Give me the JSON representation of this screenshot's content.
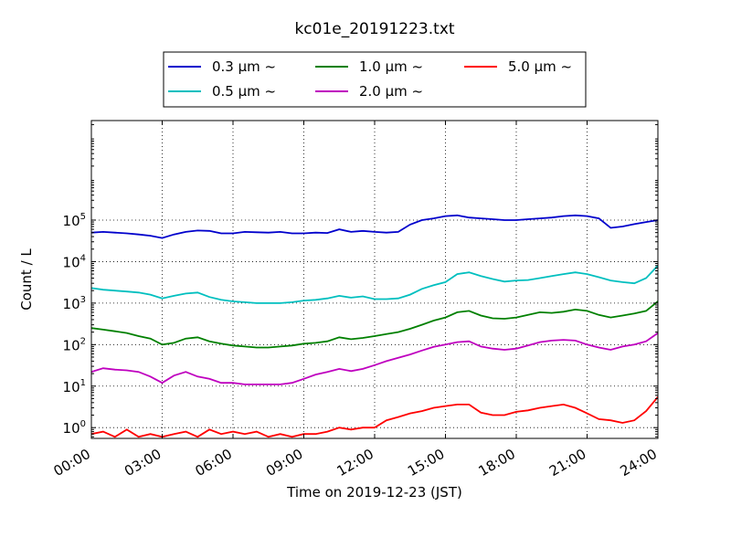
{
  "chart_data": {
    "type": "line",
    "title": "kc01e_20191223.txt",
    "xlabel": "Time on 2019-12-23 (JST)",
    "ylabel": "Count / L",
    "yscale": "log",
    "ylim": [
      0.55,
      25000000
    ],
    "xlim": [
      0,
      24
    ],
    "grid": true,
    "legend_position": "top",
    "x_tick_labels": [
      "00:00",
      "03:00",
      "06:00",
      "09:00",
      "12:00",
      "15:00",
      "18:00",
      "21:00",
      "24:00"
    ],
    "y_tick_labels": [
      {
        "base": "10",
        "exp": "0"
      },
      {
        "base": "10",
        "exp": "1"
      },
      {
        "base": "10",
        "exp": "2"
      },
      {
        "base": "10",
        "exp": "3"
      },
      {
        "base": "10",
        "exp": "4"
      },
      {
        "base": "10",
        "exp": "5"
      }
    ],
    "series": [
      {
        "name": "0.3 μm ~",
        "color": "#0000cc",
        "points": [
          [
            0.0,
            50000
          ],
          [
            0.5,
            52000
          ],
          [
            1.0,
            50000
          ],
          [
            1.5,
            48000
          ],
          [
            2.0,
            45000
          ],
          [
            2.5,
            42000
          ],
          [
            3.0,
            37000
          ],
          [
            3.5,
            45000
          ],
          [
            4.0,
            52000
          ],
          [
            4.5,
            56000
          ],
          [
            5.0,
            55000
          ],
          [
            5.5,
            48000
          ],
          [
            6.0,
            48000
          ],
          [
            6.5,
            52000
          ],
          [
            7.0,
            51000
          ],
          [
            7.5,
            50000
          ],
          [
            8.0,
            52000
          ],
          [
            8.5,
            48000
          ],
          [
            9.0,
            48000
          ],
          [
            9.5,
            50000
          ],
          [
            10.0,
            49000
          ],
          [
            10.5,
            60000
          ],
          [
            11.0,
            52000
          ],
          [
            11.5,
            55000
          ],
          [
            12.0,
            52000
          ],
          [
            12.5,
            50000
          ],
          [
            13.0,
            52000
          ],
          [
            13.5,
            78000
          ],
          [
            14.0,
            100000
          ],
          [
            14.5,
            110000
          ],
          [
            15.0,
            125000
          ],
          [
            15.5,
            130000
          ],
          [
            16.0,
            115000
          ],
          [
            16.5,
            110000
          ],
          [
            17.0,
            105000
          ],
          [
            17.5,
            100000
          ],
          [
            18.0,
            100000
          ],
          [
            18.5,
            105000
          ],
          [
            19.0,
            110000
          ],
          [
            19.5,
            115000
          ],
          [
            20.0,
            125000
          ],
          [
            20.5,
            130000
          ],
          [
            21.0,
            125000
          ],
          [
            21.5,
            110000
          ],
          [
            22.0,
            65000
          ],
          [
            22.5,
            70000
          ],
          [
            23.0,
            80000
          ],
          [
            23.5,
            90000
          ],
          [
            24.0,
            100000
          ]
        ]
      },
      {
        "name": "0.5 μm ~",
        "color": "#00bfbf",
        "points": [
          [
            0.0,
            2300
          ],
          [
            0.5,
            2100
          ],
          [
            1.0,
            2000
          ],
          [
            1.5,
            1900
          ],
          [
            2.0,
            1800
          ],
          [
            2.5,
            1600
          ],
          [
            3.0,
            1300
          ],
          [
            3.5,
            1500
          ],
          [
            4.0,
            1700
          ],
          [
            4.5,
            1800
          ],
          [
            5.0,
            1400
          ],
          [
            5.5,
            1200
          ],
          [
            6.0,
            1100
          ],
          [
            6.5,
            1050
          ],
          [
            7.0,
            1000
          ],
          [
            7.5,
            1000
          ],
          [
            8.0,
            1000
          ],
          [
            8.5,
            1050
          ],
          [
            9.0,
            1150
          ],
          [
            9.5,
            1200
          ],
          [
            10.0,
            1300
          ],
          [
            10.5,
            1500
          ],
          [
            11.0,
            1350
          ],
          [
            11.5,
            1450
          ],
          [
            12.0,
            1250
          ],
          [
            12.5,
            1250
          ],
          [
            13.0,
            1300
          ],
          [
            13.5,
            1600
          ],
          [
            14.0,
            2200
          ],
          [
            14.5,
            2700
          ],
          [
            15.0,
            3200
          ],
          [
            15.5,
            5000
          ],
          [
            16.0,
            5500
          ],
          [
            16.5,
            4500
          ],
          [
            17.0,
            3800
          ],
          [
            17.5,
            3300
          ],
          [
            18.0,
            3500
          ],
          [
            18.5,
            3600
          ],
          [
            19.0,
            4000
          ],
          [
            19.5,
            4500
          ],
          [
            20.0,
            5000
          ],
          [
            20.5,
            5500
          ],
          [
            21.0,
            5000
          ],
          [
            21.5,
            4200
          ],
          [
            22.0,
            3500
          ],
          [
            22.5,
            3200
          ],
          [
            23.0,
            3000
          ],
          [
            23.5,
            4000
          ],
          [
            24.0,
            8000
          ]
        ]
      },
      {
        "name": "1.0 μm ~",
        "color": "#008000",
        "points": [
          [
            0.0,
            250
          ],
          [
            0.5,
            230
          ],
          [
            1.0,
            210
          ],
          [
            1.5,
            190
          ],
          [
            2.0,
            160
          ],
          [
            2.5,
            140
          ],
          [
            3.0,
            100
          ],
          [
            3.5,
            110
          ],
          [
            4.0,
            140
          ],
          [
            4.5,
            150
          ],
          [
            5.0,
            120
          ],
          [
            5.5,
            105
          ],
          [
            6.0,
            95
          ],
          [
            6.5,
            90
          ],
          [
            7.0,
            85
          ],
          [
            7.5,
            85
          ],
          [
            8.0,
            90
          ],
          [
            8.5,
            95
          ],
          [
            9.0,
            105
          ],
          [
            9.5,
            110
          ],
          [
            10.0,
            120
          ],
          [
            10.5,
            150
          ],
          [
            11.0,
            135
          ],
          [
            11.5,
            145
          ],
          [
            12.0,
            160
          ],
          [
            12.5,
            180
          ],
          [
            13.0,
            200
          ],
          [
            13.5,
            240
          ],
          [
            14.0,
            300
          ],
          [
            14.5,
            380
          ],
          [
            15.0,
            450
          ],
          [
            15.5,
            600
          ],
          [
            16.0,
            650
          ],
          [
            16.5,
            500
          ],
          [
            17.0,
            430
          ],
          [
            17.5,
            420
          ],
          [
            18.0,
            450
          ],
          [
            18.5,
            520
          ],
          [
            19.0,
            600
          ],
          [
            19.5,
            580
          ],
          [
            20.0,
            620
          ],
          [
            20.5,
            700
          ],
          [
            21.0,
            650
          ],
          [
            21.5,
            520
          ],
          [
            22.0,
            450
          ],
          [
            22.5,
            500
          ],
          [
            23.0,
            560
          ],
          [
            23.5,
            650
          ],
          [
            24.0,
            1100
          ]
        ]
      },
      {
        "name": "2.0 μm ~",
        "color": "#bf00bf",
        "points": [
          [
            0.0,
            22
          ],
          [
            0.5,
            27
          ],
          [
            1.0,
            25
          ],
          [
            1.5,
            24
          ],
          [
            2.0,
            22
          ],
          [
            2.5,
            17
          ],
          [
            3.0,
            12
          ],
          [
            3.5,
            18
          ],
          [
            4.0,
            22
          ],
          [
            4.5,
            17
          ],
          [
            5.0,
            15
          ],
          [
            5.5,
            12
          ],
          [
            6.0,
            12
          ],
          [
            6.5,
            11
          ],
          [
            7.0,
            11
          ],
          [
            7.5,
            11
          ],
          [
            8.0,
            11
          ],
          [
            8.5,
            12
          ],
          [
            9.0,
            15
          ],
          [
            9.5,
            19
          ],
          [
            10.0,
            22
          ],
          [
            10.5,
            26
          ],
          [
            11.0,
            23
          ],
          [
            11.5,
            26
          ],
          [
            12.0,
            32
          ],
          [
            12.5,
            40
          ],
          [
            13.0,
            48
          ],
          [
            13.5,
            58
          ],
          [
            14.0,
            72
          ],
          [
            14.5,
            88
          ],
          [
            15.0,
            100
          ],
          [
            15.5,
            115
          ],
          [
            16.0,
            120
          ],
          [
            16.5,
            90
          ],
          [
            17.0,
            80
          ],
          [
            17.5,
            75
          ],
          [
            18.0,
            80
          ],
          [
            18.5,
            95
          ],
          [
            19.0,
            115
          ],
          [
            19.5,
            125
          ],
          [
            20.0,
            130
          ],
          [
            20.5,
            125
          ],
          [
            21.0,
            100
          ],
          [
            21.5,
            85
          ],
          [
            22.0,
            75
          ],
          [
            22.5,
            90
          ],
          [
            23.0,
            100
          ],
          [
            23.5,
            120
          ],
          [
            24.0,
            190
          ]
        ]
      },
      {
        "name": "5.0 μm ~",
        "color": "#ff0000",
        "points": [
          [
            0.0,
            0.7
          ],
          [
            0.5,
            0.8
          ],
          [
            1.0,
            0.6
          ],
          [
            1.5,
            0.9
          ],
          [
            2.0,
            0.6
          ],
          [
            2.5,
            0.7
          ],
          [
            3.0,
            0.6
          ],
          [
            3.5,
            0.7
          ],
          [
            4.0,
            0.8
          ],
          [
            4.5,
            0.6
          ],
          [
            5.0,
            0.9
          ],
          [
            5.5,
            0.7
          ],
          [
            6.0,
            0.8
          ],
          [
            6.5,
            0.7
          ],
          [
            7.0,
            0.8
          ],
          [
            7.5,
            0.6
          ],
          [
            8.0,
            0.7
          ],
          [
            8.5,
            0.6
          ],
          [
            9.0,
            0.7
          ],
          [
            9.5,
            0.7
          ],
          [
            10.0,
            0.8
          ],
          [
            10.5,
            1.0
          ],
          [
            11.0,
            0.9
          ],
          [
            11.5,
            1.0
          ],
          [
            12.0,
            1.0
          ],
          [
            12.5,
            1.5
          ],
          [
            13.0,
            1.8
          ],
          [
            13.5,
            2.2
          ],
          [
            14.0,
            2.5
          ],
          [
            14.5,
            3.0
          ],
          [
            15.0,
            3.3
          ],
          [
            15.5,
            3.6
          ],
          [
            16.0,
            3.6
          ],
          [
            16.5,
            2.3
          ],
          [
            17.0,
            2.0
          ],
          [
            17.5,
            2.0
          ],
          [
            18.0,
            2.4
          ],
          [
            18.5,
            2.6
          ],
          [
            19.0,
            3.0
          ],
          [
            19.5,
            3.3
          ],
          [
            20.0,
            3.6
          ],
          [
            20.5,
            3.0
          ],
          [
            21.0,
            2.2
          ],
          [
            21.5,
            1.6
          ],
          [
            22.0,
            1.5
          ],
          [
            22.5,
            1.3
          ],
          [
            23.0,
            1.5
          ],
          [
            23.5,
            2.5
          ],
          [
            24.0,
            5.5
          ]
        ]
      }
    ]
  }
}
